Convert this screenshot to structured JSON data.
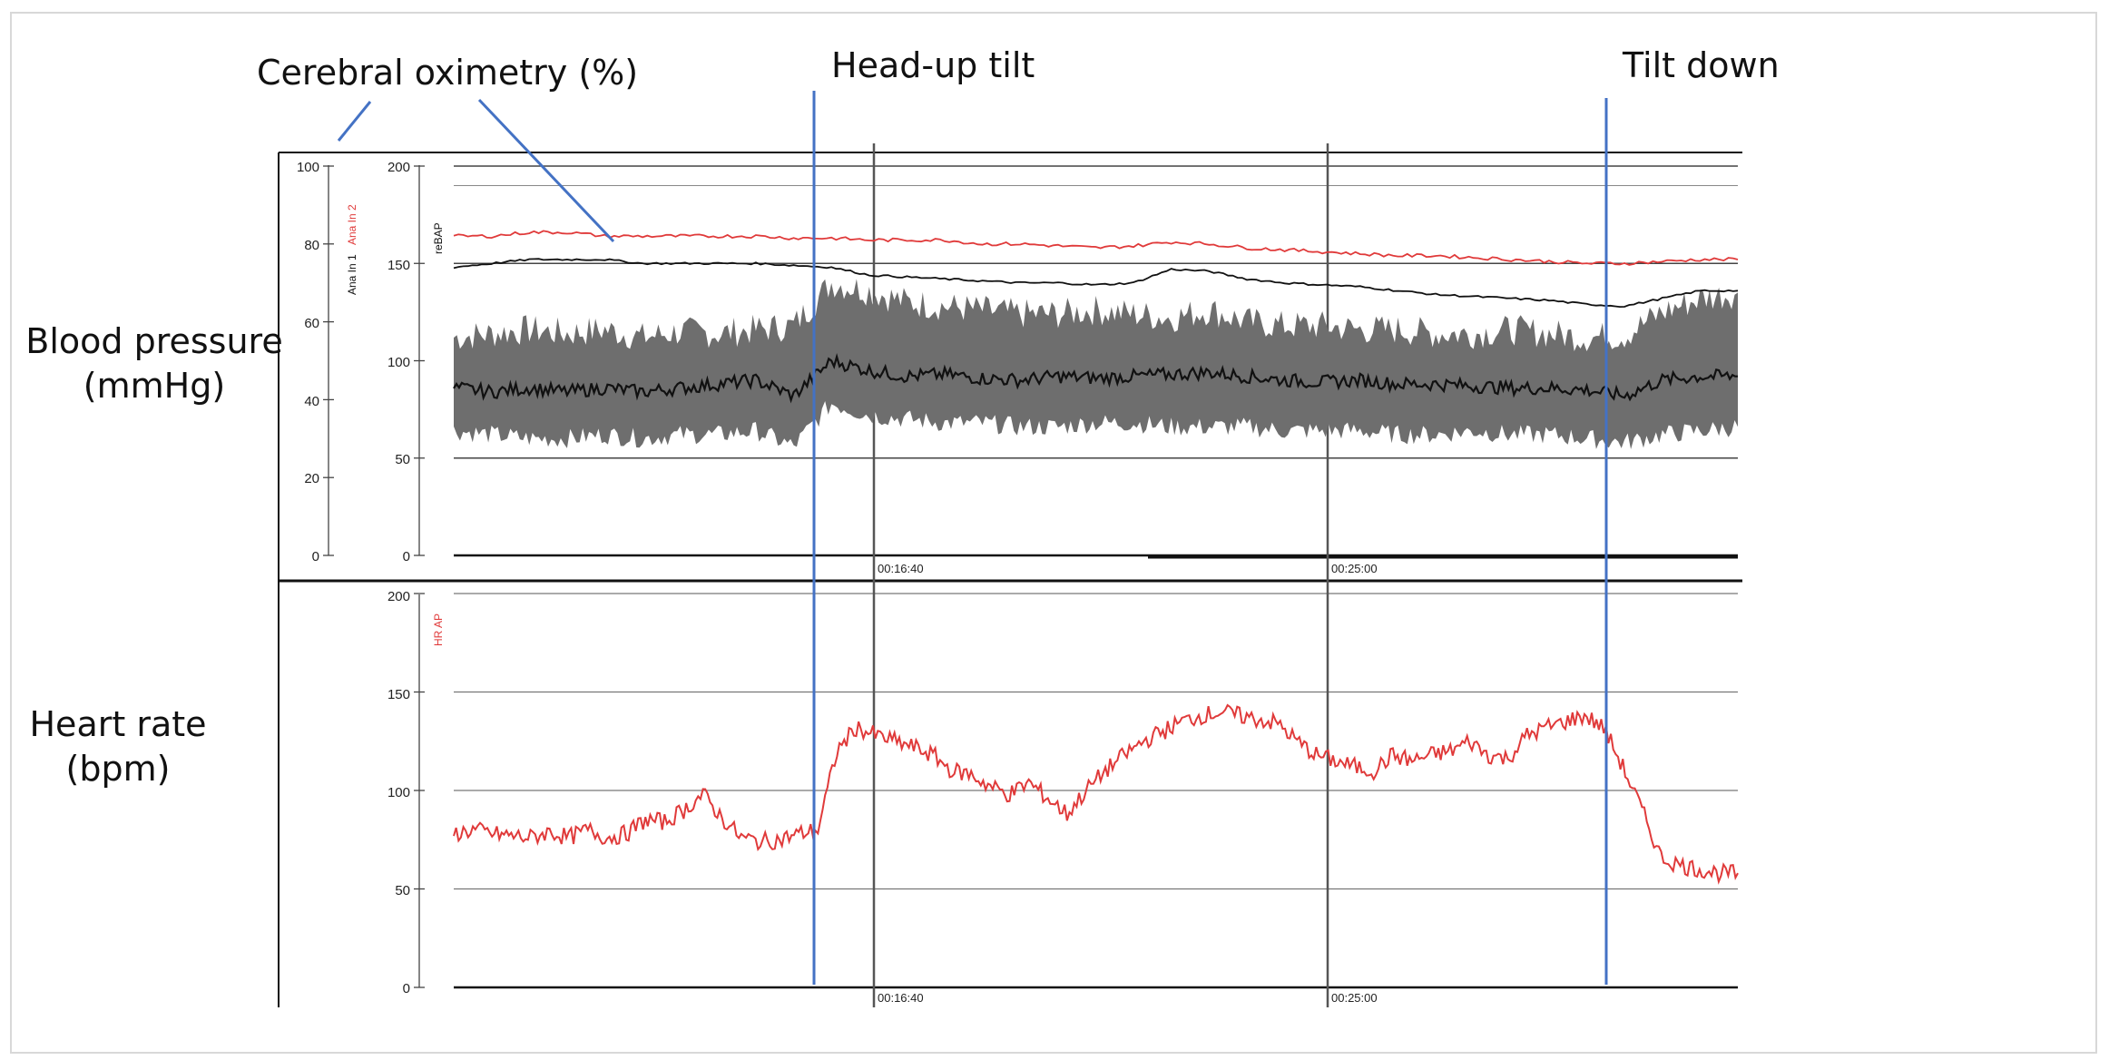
{
  "annotations": {
    "oximetry": "Cerebral oximetry (%)",
    "head_up": "Head-up tilt",
    "tilt_down": "Tilt down",
    "bp_line1": "Blood pressure",
    "bp_line2": "(mmHg)",
    "hr_line1": "Heart rate",
    "hr_line2": "(bpm)"
  },
  "colors": {
    "marker": "#4472c4",
    "red": "#e03a3a",
    "gray": "#6e6e6e",
    "black": "#111111"
  },
  "chart_data": [
    {
      "type": "line",
      "panel": "top",
      "series_labels": {
        "ana_in_1": "Ana In 1",
        "ana_in_2": "Ana In 2",
        "rebap": "reBAP"
      },
      "left_axis": {
        "ticks": [
          "100",
          "80",
          "60",
          "40",
          "20",
          "0"
        ],
        "ylim": [
          0,
          100
        ]
      },
      "right_axis": {
        "ticks": [
          "200",
          "150",
          "100",
          "50",
          "0"
        ],
        "ylim": [
          0,
          200
        ]
      },
      "time_ticks": [
        "00:16:40",
        "00:25:00"
      ],
      "grid": true,
      "series": [
        {
          "name": "Ana In 2",
          "axis": "left",
          "color": "red",
          "values": [
            82,
            82,
            83,
            83,
            82,
            82,
            82,
            82,
            82,
            81.5,
            81.5,
            81,
            81,
            81,
            80,
            80,
            79.5,
            79,
            79.5,
            80.5,
            80,
            79,
            78.5,
            78,
            77.5,
            77,
            77,
            76.5,
            76,
            75.5,
            75,
            75,
            75.5,
            76,
            76
          ]
        },
        {
          "name": "Ana In 1",
          "axis": "left",
          "color": "black",
          "values": [
            74,
            75,
            76,
            76,
            76,
            75,
            75,
            75,
            75,
            74.5,
            74,
            72,
            71.5,
            71,
            70.5,
            70,
            70,
            69.5,
            70,
            73.5,
            73,
            71,
            70,
            69.5,
            69,
            68,
            67,
            66.5,
            66,
            65.5,
            64.5,
            64,
            66,
            68,
            68
          ]
        },
        {
          "name": "reBAP",
          "axis": "right",
          "color": "gray",
          "style": "band",
          "upper": [
            112,
            114,
            116,
            114,
            116,
            112,
            115,
            114,
            116,
            118,
            140,
            136,
            130,
            128,
            126,
            124,
            124,
            126,
            124,
            122,
            126,
            120,
            118,
            118,
            116,
            116,
            114,
            114,
            116,
            114,
            112,
            113,
            125,
            132,
            135
          ],
          "lower": [
            64,
            62,
            60,
            60,
            62,
            60,
            62,
            62,
            64,
            56,
            78,
            72,
            70,
            68,
            68,
            66,
            66,
            68,
            68,
            66,
            66,
            66,
            64,
            64,
            64,
            62,
            62,
            64,
            62,
            62,
            60,
            58,
            62,
            64,
            66
          ],
          "mean": [
            86,
            84,
            86,
            84,
            86,
            84,
            86,
            88,
            90,
            82,
            100,
            95,
            92,
            93,
            91,
            90,
            92,
            91,
            92,
            93,
            94,
            92,
            90,
            89,
            90,
            88,
            88,
            87,
            86,
            86,
            85,
            82,
            90,
            92,
            92
          ]
        }
      ]
    },
    {
      "type": "line",
      "panel": "bottom",
      "series_labels": {
        "hr": "HR AP"
      },
      "y_axis": {
        "ticks": [
          "200",
          "150",
          "100",
          "50",
          "0"
        ],
        "ylim": [
          0,
          200
        ]
      },
      "time_ticks": [
        "00:16:40",
        "00:25:00"
      ],
      "grid": true,
      "series": [
        {
          "name": "HR AP",
          "color": "red",
          "values": [
            78,
            80,
            78,
            77,
            76,
            79,
            76,
            80,
            76,
            78,
            85,
            84,
            90,
            98,
            86,
            76,
            74,
            75,
            78,
            80,
            120,
            132,
            128,
            125,
            122,
            118,
            110,
            108,
            102,
            98,
            104,
            96,
            88,
            100,
            110,
            118,
            125,
            130,
            135,
            138,
            140,
            138,
            136,
            134,
            125,
            118,
            115,
            112,
            110,
            118,
            115,
            118,
            120,
            125,
            118,
            116,
            128,
            132,
            135,
            138,
            132,
            112,
            90,
            66,
            62,
            60,
            58,
            58
          ]
        }
      ]
    }
  ]
}
